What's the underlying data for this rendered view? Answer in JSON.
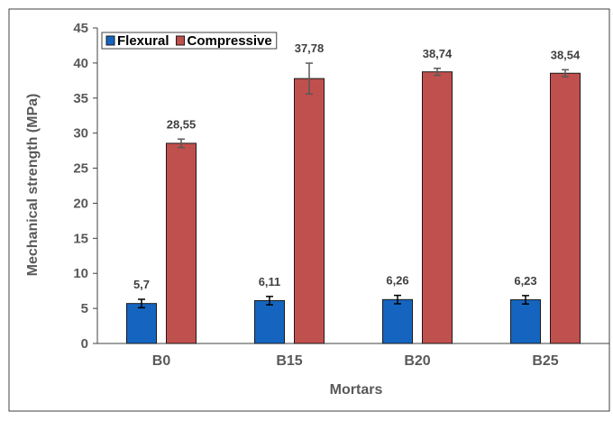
{
  "chart_data": {
    "type": "bar",
    "categories": [
      "B0",
      "B15",
      "B20",
      "B25"
    ],
    "series": [
      {
        "name": "Flexural",
        "color": "#1565C0",
        "values": [
          5.7,
          6.11,
          6.26,
          6.23
        ],
        "labels": [
          "5,7",
          "6,11",
          "6,26",
          "6,23"
        ],
        "errors": [
          0.6,
          0.6,
          0.6,
          0.6
        ]
      },
      {
        "name": "Compressive",
        "color": "#C0504D",
        "values": [
          28.55,
          37.78,
          38.74,
          38.54
        ],
        "labels": [
          "28,55",
          "37,78",
          "38,74",
          "38,54"
        ],
        "errors": [
          0.6,
          2.2,
          0.5,
          0.5
        ]
      }
    ],
    "title": "",
    "xlabel": "Mortars",
    "ylabel": "Mechanical strength (MPa)",
    "ylim": [
      0,
      45
    ],
    "yticks": [
      0,
      5,
      10,
      15,
      20,
      25,
      30,
      35,
      40,
      45
    ],
    "grid": false,
    "legend_position": "top-left"
  }
}
